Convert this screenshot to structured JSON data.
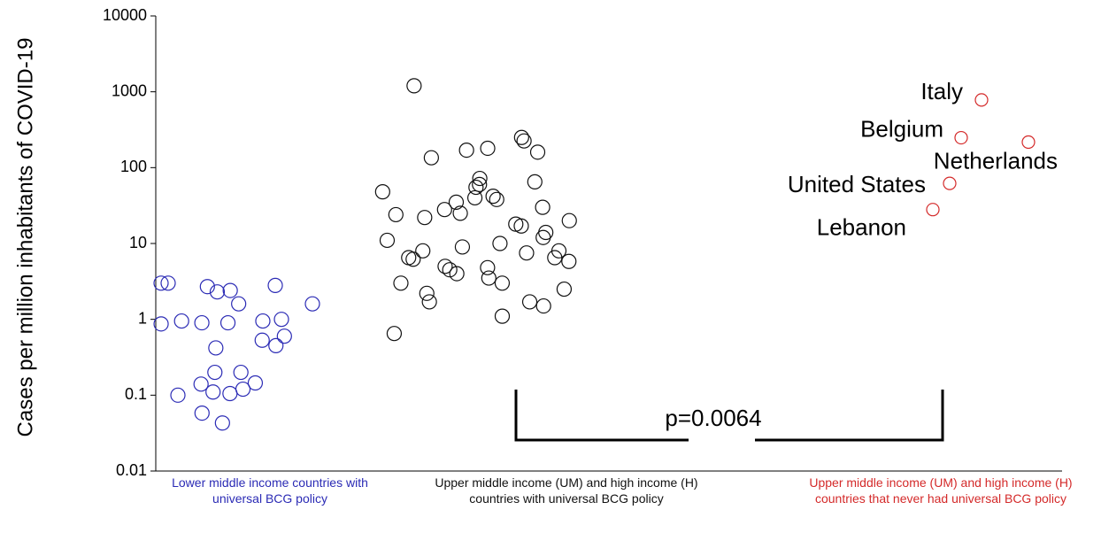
{
  "chart_data": {
    "type": "scatter",
    "y_label": "Cases per million inhabitants of COVID-19",
    "ylim": [
      0.01,
      10000
    ],
    "yticks": [
      0.01,
      0.1,
      1,
      10,
      100,
      1000,
      10000
    ],
    "log_y": true,
    "categories": [
      "Lower middle income countries with universal BCG policy",
      "Upper middle income (UM)  and high income (H) countries with universal BCG policy",
      "Upper middle income (UM)  and high income (H) countries that never had universal BCG policy"
    ],
    "series": [
      {
        "color": "#2b2bb5",
        "values": [
          3.0,
          2.8,
          3.0,
          2.4,
          2.7,
          2.3,
          1.6,
          0.95,
          0.9,
          0.9,
          1.0,
          0.95,
          1.6,
          0.6,
          0.53,
          0.42,
          0.45,
          0.2,
          0.2,
          0.14,
          0.145,
          0.105,
          0.12,
          0.11,
          0.1,
          0.058,
          0.043,
          0.87
        ]
      },
      {
        "color": "#111111",
        "values": [
          1200,
          250,
          180,
          170,
          135,
          160,
          225,
          55,
          72,
          60,
          48,
          42,
          38,
          35,
          30,
          28,
          25,
          22,
          20,
          18,
          14,
          12,
          11,
          10,
          8,
          8,
          7.5,
          6.5,
          6.5,
          6.2,
          5,
          4.8,
          4.5,
          4,
          3.5,
          3,
          3,
          2.5,
          2.2,
          1.7,
          1.7,
          1.5,
          1.1,
          0.65,
          40,
          65,
          17,
          24,
          9,
          5.8
        ]
      },
      {
        "color": "#d42a2a",
        "values": [
          780,
          248,
          217,
          62,
          28
        ],
        "labels": [
          "Italy",
          "Belgium",
          "Netherlands",
          "United States",
          "Lebanon"
        ]
      }
    ],
    "annotation": "p=0.0064"
  }
}
